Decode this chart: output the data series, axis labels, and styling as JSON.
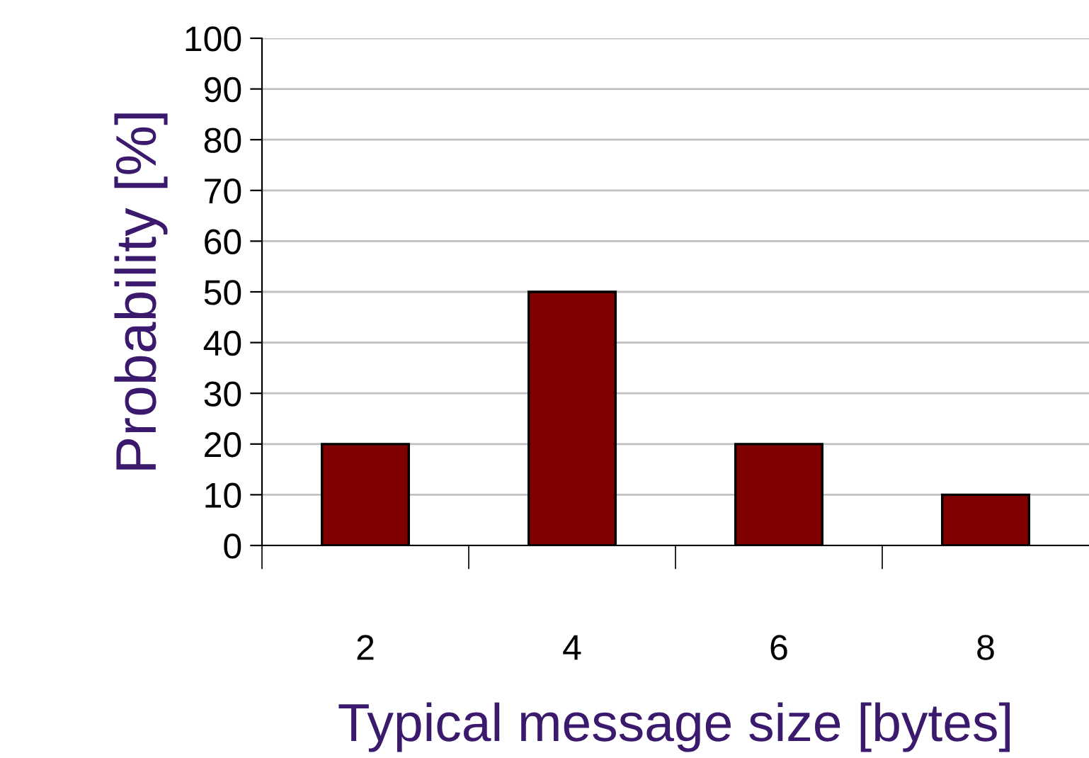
{
  "chart_data": {
    "type": "bar",
    "xlabel": "Typical message size [bytes]",
    "ylabel": "Probability [%]",
    "categories": [
      "2",
      "4",
      "6",
      "8"
    ],
    "values": [
      20,
      50,
      20,
      10
    ],
    "color": "#800000",
    "ylim": [
      0,
      100
    ],
    "yticks": [
      0,
      10,
      20,
      30,
      40,
      50,
      60,
      70,
      80,
      90,
      100
    ],
    "grid": "y",
    "legend": false
  }
}
